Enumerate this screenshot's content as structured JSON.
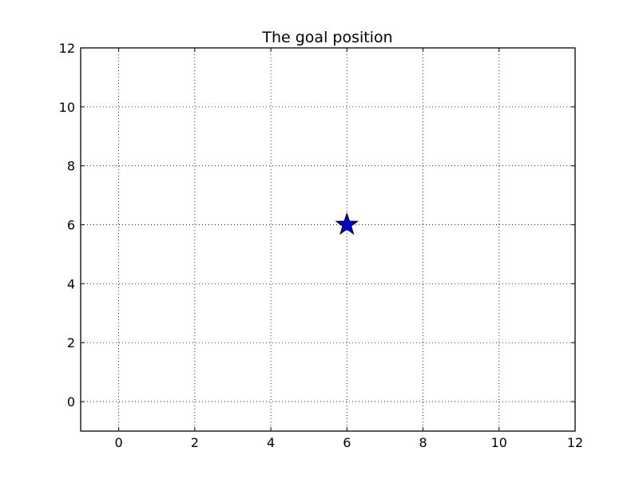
{
  "chart_data": {
    "type": "scatter",
    "title": "The goal position",
    "xlabel": "",
    "ylabel": "",
    "xlim": [
      -1,
      12
    ],
    "ylim": [
      -1,
      12
    ],
    "xticks": [
      0,
      2,
      4,
      6,
      8,
      10,
      12
    ],
    "yticks": [
      0,
      2,
      4,
      6,
      8,
      10,
      12
    ],
    "grid": true,
    "grid_style": "dotted",
    "points": [
      {
        "x": 6,
        "y": 6,
        "marker": "star",
        "color": "#0000cc"
      }
    ]
  }
}
